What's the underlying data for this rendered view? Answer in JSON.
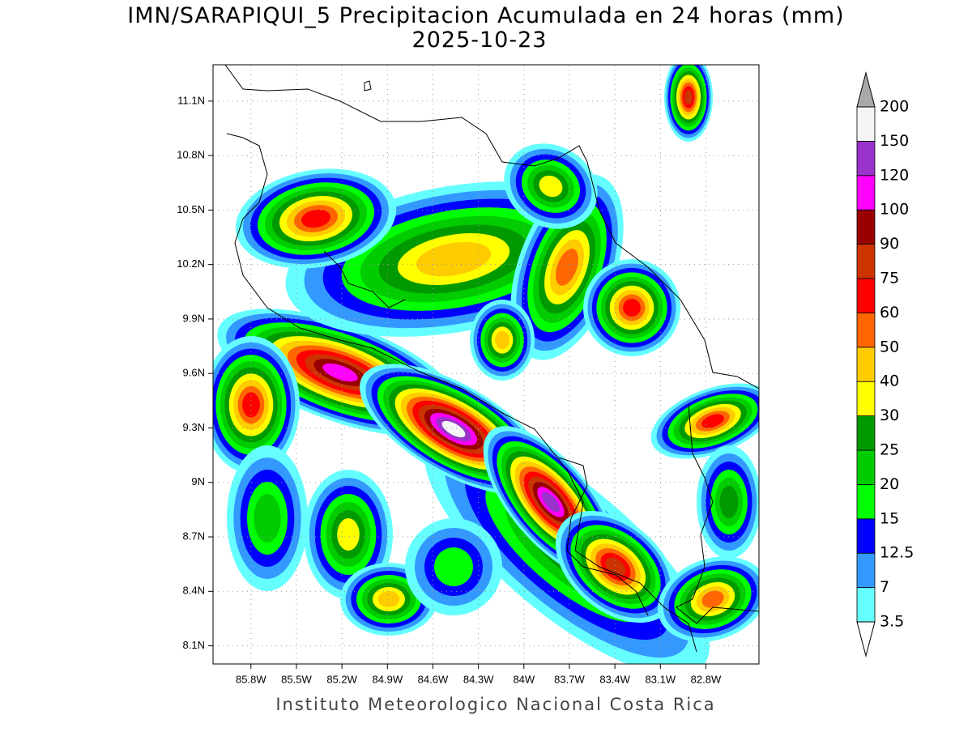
{
  "map": {
    "title": "IMN/SARAPIQUI_5 Precipitacion Acumulada en 24 horas (mm)",
    "date": "2025-10-23",
    "credit": "Instituto Meteorologico Nacional Costa Rica",
    "xlim": [
      -86.05,
      -82.45
    ],
    "ylim": [
      8.0,
      11.3
    ],
    "xticks": [
      {
        "value": -85.8,
        "label": "85.8W"
      },
      {
        "value": -85.5,
        "label": "85.5W"
      },
      {
        "value": -85.2,
        "label": "85.2W"
      },
      {
        "value": -84.9,
        "label": "84.9W"
      },
      {
        "value": -84.6,
        "label": "84.6W"
      },
      {
        "value": -84.3,
        "label": "84.3W"
      },
      {
        "value": -84.0,
        "label": "84W"
      },
      {
        "value": -83.7,
        "label": "83.7W"
      },
      {
        "value": -83.4,
        "label": "83.4W"
      },
      {
        "value": -83.1,
        "label": "83.1W"
      },
      {
        "value": -82.8,
        "label": "82.8W"
      }
    ],
    "yticks": [
      {
        "value": 8.1,
        "label": "8.1N"
      },
      {
        "value": 8.4,
        "label": "8.4N"
      },
      {
        "value": 8.7,
        "label": "8.7N"
      },
      {
        "value": 9.0,
        "label": "9N"
      },
      {
        "value": 9.3,
        "label": "9.3N"
      },
      {
        "value": 9.6,
        "label": "9.6N"
      },
      {
        "value": 9.9,
        "label": "9.9N"
      },
      {
        "value": 10.2,
        "label": "10.2N"
      },
      {
        "value": 10.5,
        "label": "10.5N"
      },
      {
        "value": 10.8,
        "label": "10.8N"
      },
      {
        "value": 11.1,
        "label": "11.1N"
      }
    ],
    "grid": true,
    "colorbar": {
      "levels": [
        3.5,
        7,
        12.5,
        15,
        20,
        25,
        30,
        40,
        50,
        60,
        75,
        90,
        100,
        120,
        150,
        200
      ],
      "colors": [
        "#66ffff",
        "#3399ff",
        "#0000ff",
        "#00ff00",
        "#00cc00",
        "#009900",
        "#ffff00",
        "#ffcc00",
        "#ff6600",
        "#ff0000",
        "#cc3300",
        "#990000",
        "#ff00ff",
        "#9933cc",
        "#f5f5f5"
      ],
      "under_color": "#ffffff",
      "over_color": "#aaaaaa"
    }
  }
}
